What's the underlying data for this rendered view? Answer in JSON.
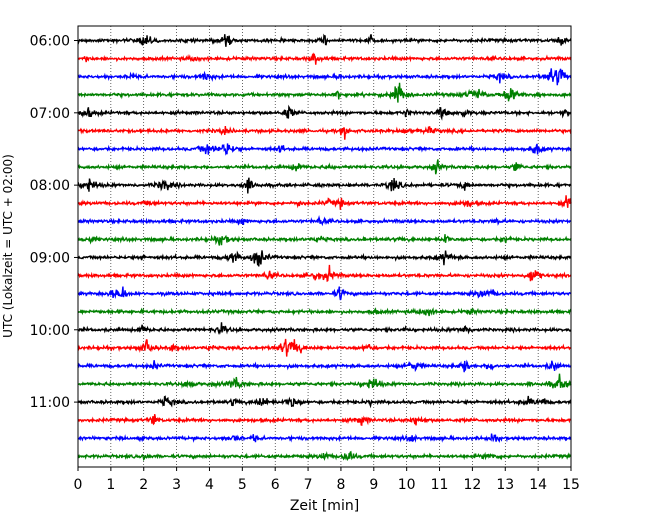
{
  "chart_data": {
    "type": "line",
    "subtype": "helicorder",
    "xlabel": "Zeit  [min]",
    "ylabel": "UTC (Lokalzeit = UTC + 02:00)",
    "xlim": [
      0,
      15
    ],
    "x_ticks": [
      "0",
      "1",
      "2",
      "3",
      "4",
      "5",
      "6",
      "7",
      "8",
      "9",
      "10",
      "11",
      "12",
      "13",
      "14",
      "15"
    ],
    "y_tick_labels": [
      "06:00",
      "07:00",
      "08:00",
      "09:00",
      "10:00",
      "11:00"
    ],
    "traces_per_hour": 4,
    "trace_count": 24,
    "trace_colors": [
      "#000000",
      "#ff0000",
      "#0000ff",
      "#008000"
    ],
    "grid": "vertical dotted at each minute"
  }
}
